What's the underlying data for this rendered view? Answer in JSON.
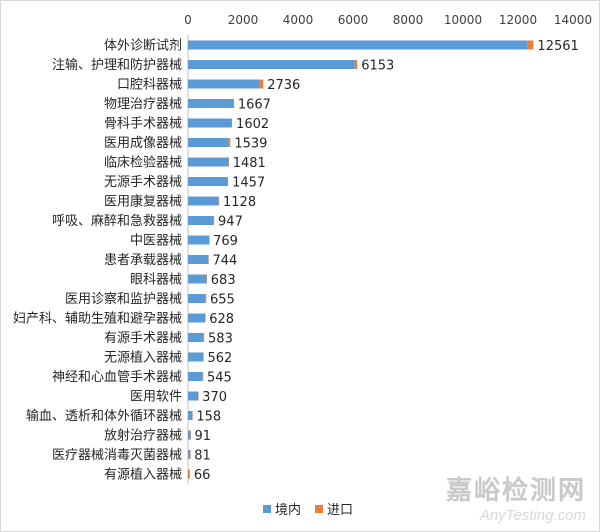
{
  "chart_data": {
    "type": "bar",
    "orientation": "horizontal",
    "stacked": true,
    "categories": [
      "体外诊断试剂",
      "注输、护理和防护器械",
      "口腔科器械",
      "物理治疗器械",
      "骨科手术器械",
      "医用成像器械",
      "临床检验器械",
      "无源手术器械",
      "医用康复器械",
      "呼吸、麻醉和急救器械",
      "中医器械",
      "患者承载器械",
      "眼科器械",
      "医用诊察和监护器械",
      "妇产科、辅助生殖和避孕器械",
      "有源手术器械",
      "无源植入器械",
      "神经和心血管手术器械",
      "医用软件",
      "输血、透析和体外循环器械",
      "放射治疗器械",
      "医疗器械消毒灭菌器械",
      "有源植入器械"
    ],
    "series": [
      {
        "name": "境内",
        "color": "#5b9bd5",
        "values": [
          12341,
          6063,
          2606,
          1655,
          1583,
          1479,
          1475,
          1440,
          1114,
          936,
          767,
          738,
          673,
          646,
          624,
          573,
          553,
          537,
          368,
          154,
          89,
          77,
          2
        ]
      },
      {
        "name": "进口",
        "color": "#ed7d31",
        "values": [
          220,
          90,
          130,
          12,
          19,
          60,
          6,
          17,
          14,
          11,
          2,
          6,
          10,
          9,
          4,
          10,
          9,
          8,
          2,
          4,
          2,
          4,
          64
        ]
      }
    ],
    "totals": [
      "12561",
      "6153",
      "2736",
      "1667",
      "1602",
      "1539",
      "1481",
      "1457",
      "1128",
      "947",
      "769",
      "744",
      "683",
      "655",
      "628",
      "583",
      "562",
      "545",
      "370",
      "158",
      "91",
      "81",
      "66"
    ],
    "xlim": [
      0,
      14000
    ],
    "xticks": [
      "0",
      "2000",
      "4000",
      "6000",
      "8000",
      "10000",
      "12000",
      "14000"
    ],
    "xaxis_position": "top",
    "legend_position": "bottom",
    "grid": false
  },
  "watermark": {
    "cn": "嘉峪检测网",
    "en": "AnyTesting.com"
  }
}
